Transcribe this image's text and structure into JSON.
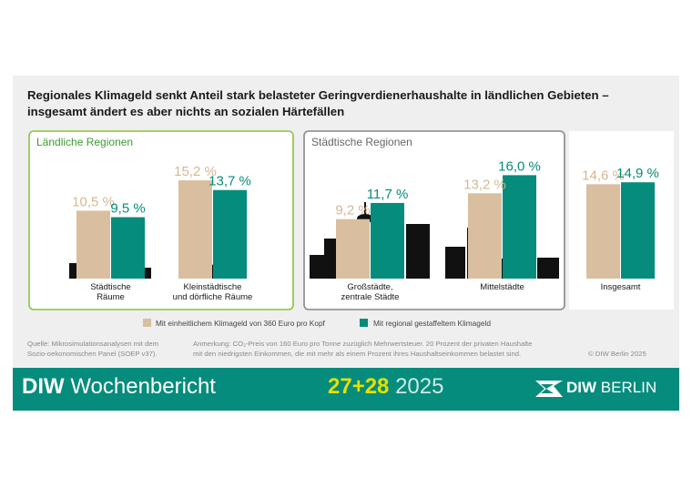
{
  "title": "Regionales Klimageld senkt Anteil stark belasteter Geringverdienerhaushalte in ländlichen Gebieten – insgesamt ändert es aber nichts an sozialen Härtefällen",
  "colors": {
    "beige": "#d9bf9f",
    "teal": "#058c7c",
    "green_frame": "#8cc63f",
    "grey_frame": "#8a8a8a",
    "beige_text": "#d5b893"
  },
  "chart_data": {
    "type": "bar",
    "unit": "%",
    "groups": [
      {
        "name": "Ländliche Regionen",
        "categories": [
          "Städtische Räume",
          "Kleinstädtische und dörfliche Räume"
        ]
      },
      {
        "name": "Städtische Regionen",
        "categories": [
          "Großstädte, zentrale Städte",
          "Mittelstädte"
        ]
      },
      {
        "name": "",
        "categories": [
          "Insgesamt"
        ]
      }
    ],
    "categories": [
      "Städtische Räume",
      "Kleinstädtische und dörfliche Räume",
      "Großstädte, zentrale Städte",
      "Mittelstädte",
      "Insgesamt"
    ],
    "category_lines": [
      [
        "Städtische",
        "Räume"
      ],
      [
        "Kleinstädtische",
        "und dörfliche Räume"
      ],
      [
        "Großstädte,",
        "zentrale Städte"
      ],
      [
        "Mittelstädte"
      ],
      [
        "Insgesamt"
      ]
    ],
    "series": [
      {
        "name": "Mit einheitlichem Klimageld von 360 Euro pro Kopf",
        "color": "#d9bf9f",
        "values": [
          10.5,
          15.2,
          9.2,
          13.2,
          14.6
        ],
        "labels": [
          "10,5 %",
          "15,2 %",
          "9,2 %",
          "13,2 %",
          "14,6 %"
        ]
      },
      {
        "name": "Mit regional gestaffeltem Klimageld",
        "color": "#058c7c",
        "values": [
          9.5,
          13.7,
          11.7,
          16.0,
          14.9
        ],
        "labels": [
          "9,5 %",
          "13,7 %",
          "11,7 %",
          "16,0 %",
          "14,9 %"
        ]
      }
    ]
  },
  "notes": {
    "source_line1": "Quelle: Mikrosimulationsanalysen mit dem",
    "source_line2": "Sozio-oekonomischen Panel (SOEP v37).",
    "remark_line1": "Anmerkung: CO₂-Preis von 160 Euro pro Tonne zuzüglich Mehrwertsteuer. 20 Prozent der privaten Haushalte",
    "remark_line2": "mit den niedrigsten Einkommen, die mit mehr als einem Prozent ihres Haushaltseinkommen belastet sind.",
    "copyright": "© DIW Berlin 2025"
  },
  "footer": {
    "brand_bold": "DIW",
    "brand_rest": " Wochenbericht",
    "issue": "27+28",
    "year": " 2025",
    "logo_bold": "DIW",
    "logo_rest": " BERLIN"
  }
}
